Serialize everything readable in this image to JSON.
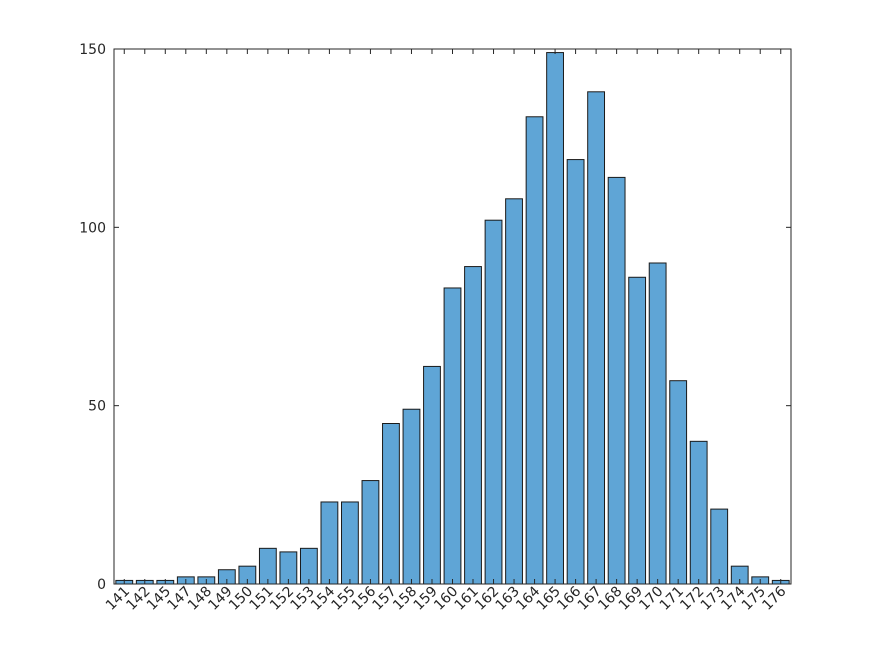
{
  "chart_data": {
    "type": "bar",
    "title": "",
    "xlabel": "",
    "ylabel": "",
    "categories": [
      "141",
      "142",
      "145",
      "147",
      "148",
      "149",
      "150",
      "151",
      "152",
      "153",
      "154",
      "155",
      "156",
      "157",
      "158",
      "159",
      "160",
      "161",
      "162",
      "163",
      "164",
      "165",
      "166",
      "167",
      "168",
      "169",
      "170",
      "171",
      "172",
      "173",
      "174",
      "175",
      "176"
    ],
    "values": [
      1,
      1,
      1,
      2,
      2,
      4,
      5,
      10,
      9,
      10,
      23,
      23,
      29,
      45,
      49,
      61,
      83,
      89,
      102,
      108,
      131,
      149,
      119,
      138,
      114,
      86,
      90,
      57,
      40,
      21,
      5,
      2,
      1
    ],
    "ylim": [
      0,
      150
    ],
    "yticks": [
      0,
      50,
      100,
      150
    ],
    "ytick_labels": [
      "0",
      "50",
      "100",
      "150"
    ],
    "grid": false,
    "legend": "none",
    "colors": {
      "bar_fill": "#5fa5d6",
      "bar_edge": "#1a1a1a",
      "axis": "#262626"
    }
  }
}
